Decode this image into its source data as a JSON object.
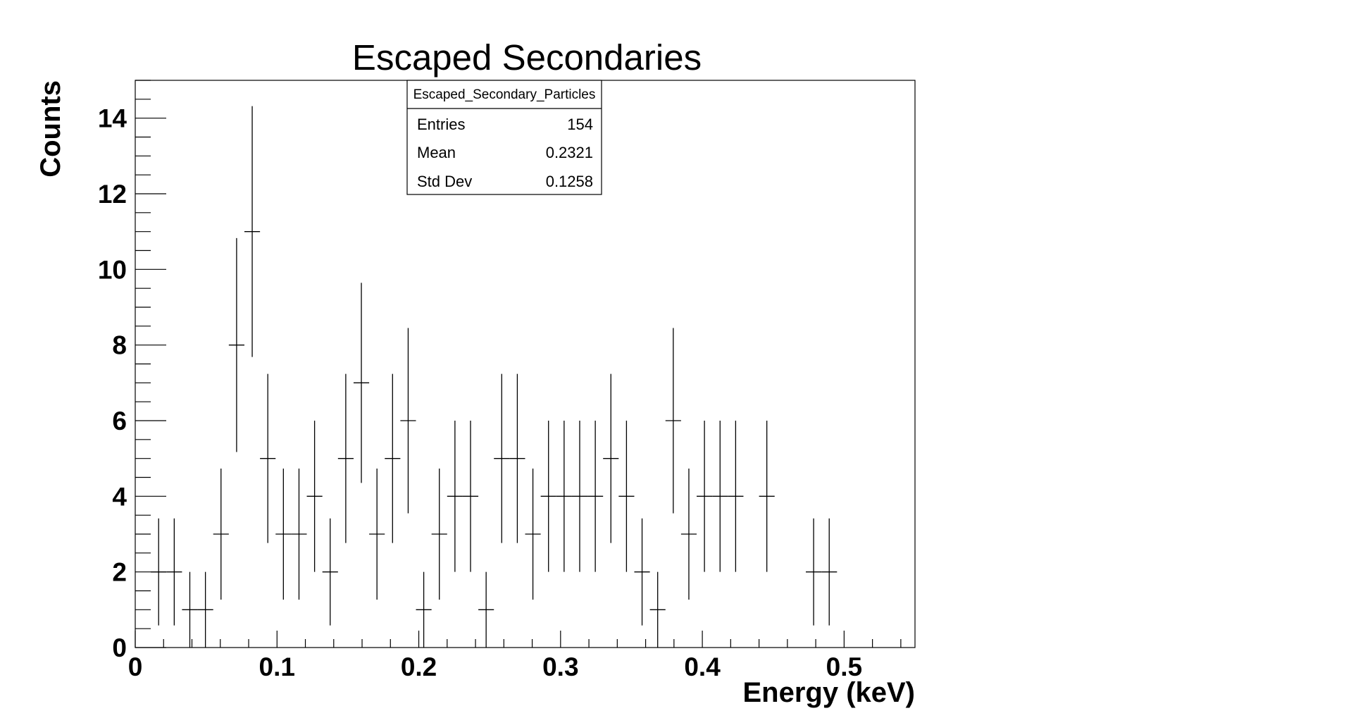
{
  "chart_data": {
    "type": "histogram",
    "title": "Escaped Secondaries",
    "xlabel": "Energy (keV)",
    "ylabel": "Counts",
    "xlim": [
      0,
      0.55
    ],
    "ylim": [
      0,
      15
    ],
    "x_ticks": [
      "0",
      "0.1",
      "0.2",
      "0.3",
      "0.4",
      "0.5"
    ],
    "y_ticks": [
      "0",
      "2",
      "4",
      "6",
      "8",
      "10",
      "12",
      "14"
    ],
    "bin_width": 0.011,
    "stats_box": {
      "name": "Escaped_Secondary_Particles",
      "rows": [
        {
          "label": "Entries",
          "value": "154"
        },
        {
          "label": "Mean",
          "value": "0.2321"
        },
        {
          "label": "Std Dev",
          "value": "0.1258"
        }
      ]
    },
    "series": [
      {
        "x": [
          0.0165,
          0.0275,
          0.0385,
          0.0495,
          0.0605,
          0.0715,
          0.0825,
          0.0935,
          0.1045,
          0.1155,
          0.1265,
          0.1375,
          0.1485,
          0.1595,
          0.1705,
          0.1815,
          0.1925,
          0.2035,
          0.2145,
          0.2255,
          0.2365,
          0.2475,
          0.2585,
          0.2695,
          0.2805,
          0.2915,
          0.3025,
          0.3135,
          0.3245,
          0.3355,
          0.3465,
          0.3575,
          0.3685,
          0.3795,
          0.3905,
          0.4015,
          0.4125,
          0.4235,
          0.4455,
          0.4785,
          0.4895
        ],
        "values": [
          2,
          2,
          1,
          1,
          3,
          8,
          11,
          5,
          3,
          3,
          4,
          2,
          5,
          7,
          3,
          5,
          6,
          1,
          3,
          4,
          4,
          1,
          5,
          5,
          3,
          4,
          4,
          4,
          4,
          5,
          4,
          2,
          1,
          6,
          3,
          4,
          4,
          4,
          4,
          2,
          2
        ]
      }
    ]
  }
}
